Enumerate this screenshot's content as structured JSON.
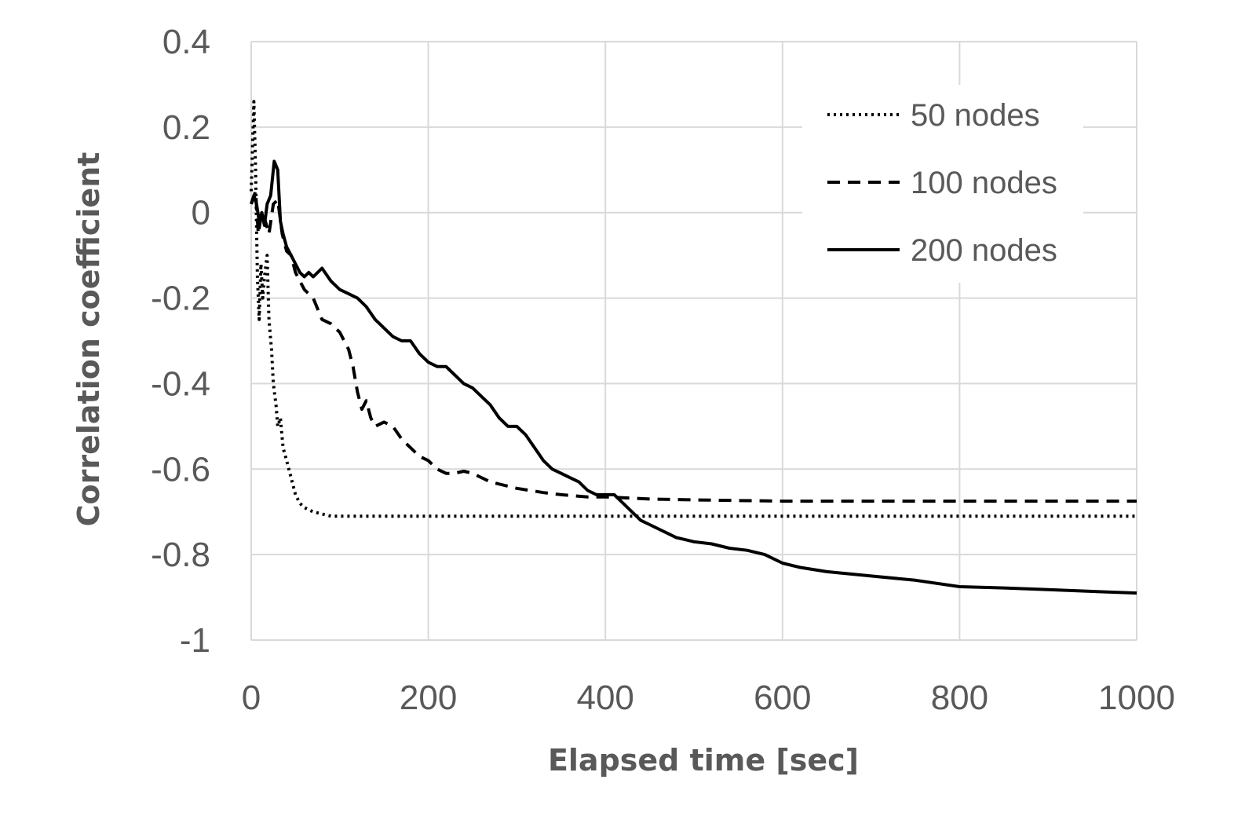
{
  "chart_data": {
    "type": "line",
    "title": "",
    "xlabel": "Elapsed time [sec]",
    "ylabel": "Correlation coefficient",
    "xlim": [
      0,
      1000
    ],
    "ylim": [
      -1,
      0.4
    ],
    "x_ticks": [
      0,
      200,
      400,
      600,
      800,
      1000
    ],
    "x_tick_labels": [
      "0",
      "200",
      "400",
      "600",
      "800",
      "1000"
    ],
    "y_ticks": [
      0.4,
      0.2,
      0,
      -0.2,
      -0.4,
      -0.6,
      -0.8,
      -1
    ],
    "y_tick_labels": [
      "0.4",
      "0.2",
      "0",
      "-0.2",
      "-0.4",
      "-0.6",
      "-0.8",
      "-1"
    ],
    "grid": true,
    "legend_position": "top-right",
    "series": [
      {
        "name": "50 nodes",
        "style": "dotted",
        "x": [
          0,
          3,
          5,
          7,
          9,
          11,
          13,
          15,
          18,
          20,
          23,
          25,
          28,
          30,
          33,
          36,
          40,
          45,
          50,
          55,
          60,
          70,
          80,
          90,
          100,
          150,
          200,
          400,
          600,
          800,
          1000
        ],
        "y": [
          0.05,
          0.26,
          0.1,
          -0.15,
          -0.25,
          -0.12,
          -0.2,
          -0.15,
          -0.1,
          -0.25,
          -0.32,
          -0.4,
          -0.45,
          -0.5,
          -0.48,
          -0.55,
          -0.58,
          -0.62,
          -0.66,
          -0.68,
          -0.69,
          -0.7,
          -0.705,
          -0.71,
          -0.71,
          -0.71,
          -0.71,
          -0.71,
          -0.71,
          -0.71,
          -0.71
        ]
      },
      {
        "name": "100 nodes",
        "style": "dashed",
        "x": [
          0,
          5,
          8,
          12,
          16,
          20,
          25,
          30,
          35,
          40,
          45,
          50,
          60,
          70,
          80,
          90,
          100,
          110,
          115,
          120,
          125,
          130,
          135,
          140,
          150,
          160,
          170,
          180,
          190,
          200,
          210,
          220,
          230,
          240,
          250,
          270,
          300,
          330,
          350,
          380,
          400,
          450,
          500,
          600,
          700,
          800,
          900,
          1000
        ],
        "y": [
          0.02,
          0.05,
          -0.05,
          0.0,
          -0.02,
          -0.05,
          0.02,
          0.03,
          -0.05,
          -0.09,
          -0.1,
          -0.14,
          -0.18,
          -0.2,
          -0.25,
          -0.26,
          -0.28,
          -0.32,
          -0.36,
          -0.42,
          -0.46,
          -0.44,
          -0.48,
          -0.5,
          -0.49,
          -0.5,
          -0.53,
          -0.55,
          -0.57,
          -0.58,
          -0.6,
          -0.61,
          -0.61,
          -0.605,
          -0.61,
          -0.63,
          -0.645,
          -0.655,
          -0.66,
          -0.665,
          -0.665,
          -0.67,
          -0.672,
          -0.675,
          -0.675,
          -0.675,
          -0.675,
          -0.675
        ]
      },
      {
        "name": "200 nodes",
        "style": "solid",
        "x": [
          0,
          3,
          6,
          9,
          12,
          15,
          18,
          22,
          26,
          30,
          33,
          36,
          40,
          45,
          50,
          55,
          60,
          65,
          70,
          80,
          90,
          100,
          110,
          120,
          130,
          140,
          150,
          160,
          170,
          180,
          190,
          200,
          210,
          220,
          230,
          240,
          250,
          260,
          270,
          280,
          290,
          300,
          310,
          320,
          330,
          340,
          350,
          360,
          370,
          380,
          390,
          400,
          410,
          420,
          430,
          440,
          450,
          460,
          470,
          480,
          490,
          500,
          520,
          540,
          560,
          580,
          600,
          620,
          650,
          700,
          750,
          800,
          850,
          900,
          950,
          1000
        ],
        "y": [
          0.02,
          0.04,
          0.02,
          -0.02,
          0.0,
          -0.03,
          0.02,
          0.04,
          0.12,
          0.1,
          -0.02,
          -0.05,
          -0.08,
          -0.1,
          -0.12,
          -0.14,
          -0.15,
          -0.14,
          -0.15,
          -0.13,
          -0.16,
          -0.18,
          -0.19,
          -0.2,
          -0.22,
          -0.25,
          -0.27,
          -0.29,
          -0.3,
          -0.3,
          -0.33,
          -0.35,
          -0.36,
          -0.36,
          -0.38,
          -0.4,
          -0.41,
          -0.43,
          -0.45,
          -0.48,
          -0.5,
          -0.5,
          -0.52,
          -0.55,
          -0.58,
          -0.6,
          -0.61,
          -0.62,
          -0.63,
          -0.65,
          -0.66,
          -0.66,
          -0.66,
          -0.68,
          -0.7,
          -0.72,
          -0.73,
          -0.74,
          -0.75,
          -0.76,
          -0.765,
          -0.77,
          -0.775,
          -0.785,
          -0.79,
          -0.8,
          -0.82,
          -0.83,
          -0.84,
          -0.85,
          -0.86,
          -0.875,
          -0.878,
          -0.882,
          -0.886,
          -0.89
        ]
      }
    ]
  }
}
